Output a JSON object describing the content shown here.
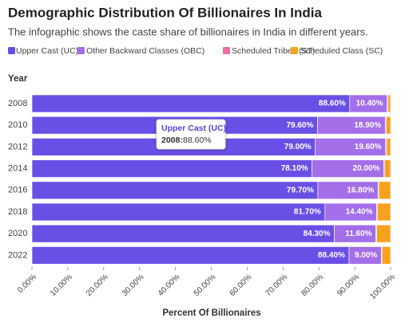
{
  "chart_data": {
    "type": "stacked-bar-horizontal",
    "title": "Demographic Distribution Of Billionaires In India",
    "subtitle": "The infographic shows the caste share of billionaires in India in different years.",
    "y_label": "Year",
    "x_label": "Percent Of Billionaires",
    "categories": [
      "2008",
      "2010",
      "2012",
      "2014",
      "2016",
      "2018",
      "2020",
      "2022"
    ],
    "series": [
      {
        "name": "Upper Cast (UC)",
        "color": "#6a4fe6",
        "values": [
          88.6,
          79.6,
          79.0,
          78.1,
          79.7,
          81.7,
          84.3,
          88.4
        ],
        "value_labels": [
          "88.60%",
          "79.60%",
          "79.00%",
          "78.10%",
          "79.70%",
          "81.70%",
          "84.30%",
          "88.40%"
        ]
      },
      {
        "name": "Other Backward Classes (OBC)",
        "color": "#a46ee9",
        "values": [
          10.4,
          18.9,
          19.6,
          20.0,
          16.8,
          14.4,
          11.6,
          9.0
        ],
        "value_labels": [
          "10.40%",
          "18.90%",
          "19.60%",
          "20.00%",
          "16.80%",
          "14.40%",
          "11.60%",
          "9.00%"
        ]
      },
      {
        "name": "Scheduled Tribes (ST)",
        "color": "#ef6f9e",
        "values": [
          0.3,
          0.3,
          0.3,
          0.3,
          0.2,
          0.2,
          0.2,
          0.2
        ]
      },
      {
        "name": "Scheduled Class (SC)",
        "color": "#f7a21c",
        "values": [
          0.7,
          1.2,
          1.1,
          1.6,
          3.3,
          3.7,
          3.9,
          2.4
        ]
      }
    ],
    "xlim": [
      0,
      100
    ],
    "xticks": [
      {
        "value": 0,
        "label": "0.00%"
      },
      {
        "value": 10,
        "label": "10.00%"
      },
      {
        "value": 20,
        "label": "20.00%"
      },
      {
        "value": 30,
        "label": "30.00%"
      },
      {
        "value": 40,
        "label": "40.00%"
      },
      {
        "value": 50,
        "label": "50.00%"
      },
      {
        "value": 60,
        "label": "60.00%"
      },
      {
        "value": 70,
        "label": "70.00%"
      },
      {
        "value": 80,
        "label": "80.00%"
      },
      {
        "value": 90,
        "label": "90.00%"
      },
      {
        "value": 100,
        "label": "100.00%"
      }
    ],
    "tooltip": {
      "title": "Upper Cast (UC)",
      "category": "2008:",
      "value": "88.60%"
    }
  }
}
